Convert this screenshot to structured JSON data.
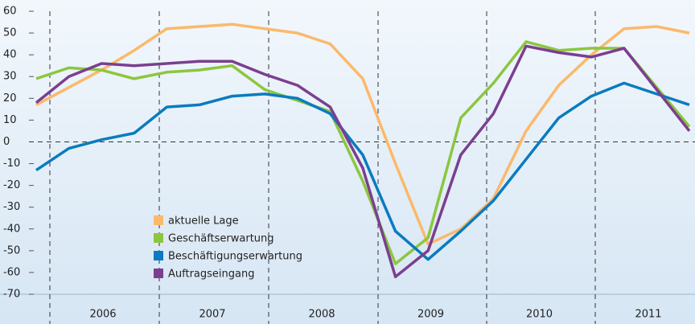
{
  "chart_data": {
    "type": "line",
    "categories": [
      null,
      null,
      null,
      null,
      null,
      null,
      null,
      null,
      null,
      null,
      null,
      null,
      null,
      null,
      null,
      null,
      null,
      null,
      null,
      null,
      null
    ],
    "year_labels": [
      "2006",
      "2007",
      "2008",
      "2009",
      "2010",
      "2011"
    ],
    "series": [
      {
        "name": "aktuelle Lage",
        "color": "#fbb96a",
        "values": [
          17,
          25,
          33,
          42,
          52,
          53,
          54,
          52,
          50,
          45,
          29,
          -10,
          -47,
          -40,
          -26,
          5,
          26,
          40,
          52,
          53,
          50
        ]
      },
      {
        "name": "Geschäftserwartung",
        "color": "#8cc63f",
        "values": [
          29,
          34,
          33,
          29,
          32,
          33,
          35,
          24,
          19,
          14,
          -18,
          -56,
          -44,
          11,
          27,
          46,
          42,
          43,
          43,
          25,
          7
        ]
      },
      {
        "name": "Beschäftigungserwartung",
        "color": "#0a7bbf",
        "values": [
          -13,
          -3,
          1,
          4,
          16,
          17,
          21,
          22,
          20,
          13,
          -6,
          -41,
          -54,
          -41,
          -27,
          -8,
          11,
          21,
          27,
          22,
          17
        ]
      },
      {
        "name": "Auftragseingang",
        "color": "#7b3f8f",
        "values": [
          18,
          30,
          36,
          35,
          36,
          37,
          37,
          31,
          26,
          16,
          -12,
          -62,
          -50,
          -6,
          13,
          44,
          41,
          39,
          43,
          24,
          5
        ]
      }
    ],
    "ylim": [
      -70,
      60
    ],
    "yticks": [
      -70,
      -60,
      -50,
      -40,
      -30,
      -20,
      -10,
      0,
      10,
      20,
      30,
      40,
      50,
      60
    ],
    "grid": false
  }
}
